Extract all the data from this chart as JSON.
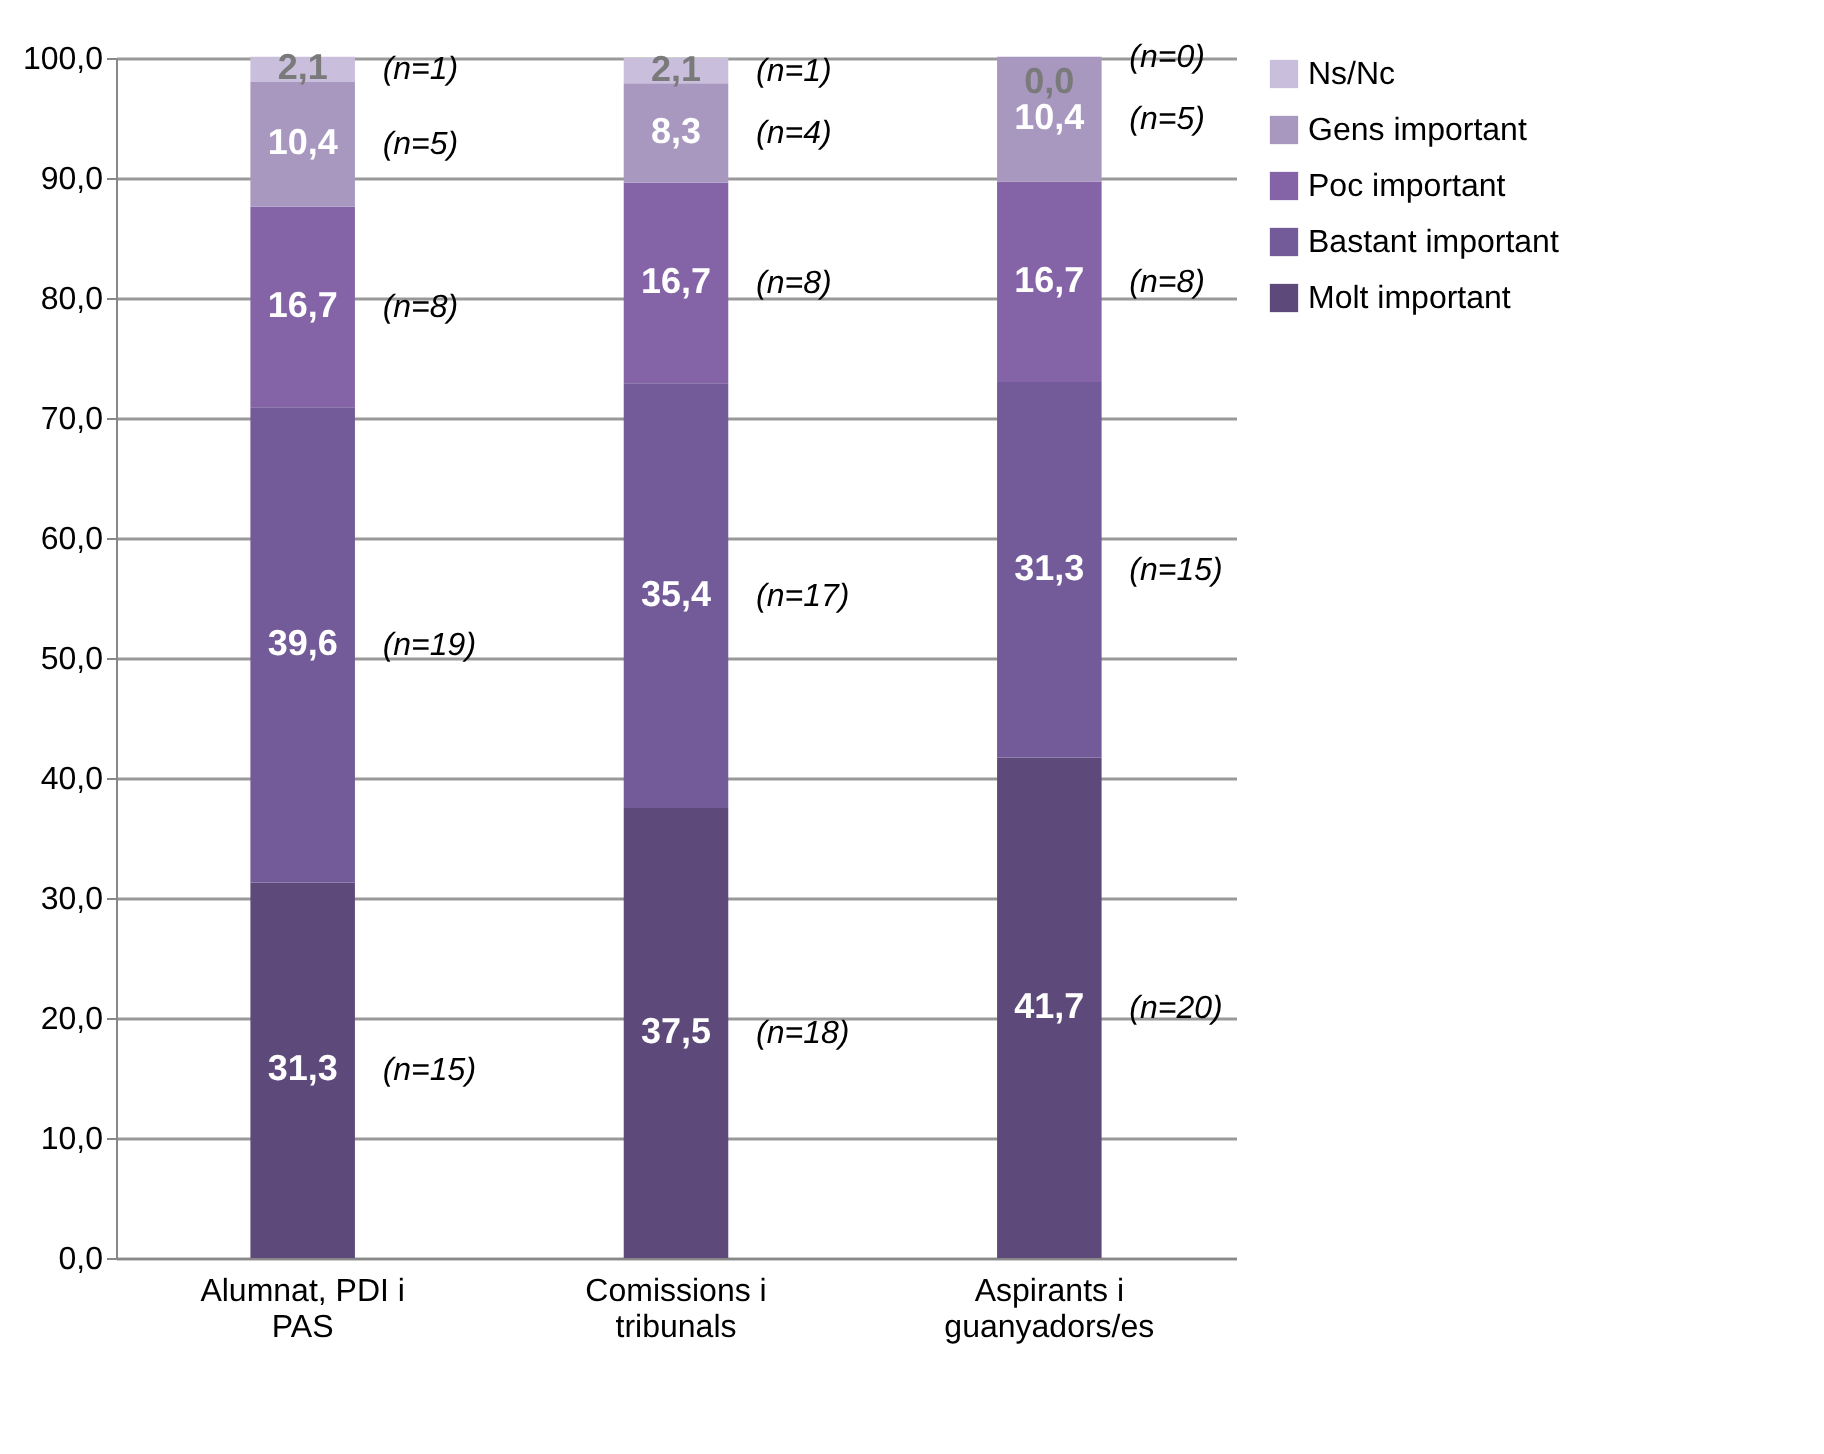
{
  "chart_data": {
    "type": "bar",
    "stacked": true,
    "categories": [
      "Alumnat, PDI i PAS",
      "Comissions i tribunals",
      "Aspirants i guanyadors/es"
    ],
    "series": [
      {
        "name": "Molt important",
        "color": "#5e4a7a",
        "values": [
          31.3,
          37.5,
          41.7
        ],
        "value_labels": [
          "31,3",
          "37,5",
          "41,7"
        ]
      },
      {
        "name": "Bastant important",
        "color": "#735a98",
        "values": [
          39.6,
          35.4,
          31.3
        ],
        "value_labels": [
          "39,6",
          "35,4",
          "31,3"
        ]
      },
      {
        "name": "Poc important",
        "color": "#8464a6",
        "values": [
          16.7,
          16.7,
          16.7
        ],
        "value_labels": [
          "16,7",
          "16,7",
          "16,7"
        ]
      },
      {
        "name": "Gens important",
        "color": "#a898c0",
        "values": [
          10.4,
          8.3,
          10.4
        ],
        "value_labels": [
          "10,4",
          "8,3",
          "10,4"
        ]
      },
      {
        "name": "Ns/Nc",
        "color": "#c9bedb",
        "values": [
          2.1,
          2.1,
          0.0
        ],
        "value_labels": [
          "2,1",
          "2,1",
          "0,0"
        ]
      }
    ],
    "ylim": [
      0,
      100
    ],
    "yticks": [
      {
        "value": 0,
        "label": "0,0"
      },
      {
        "value": 10,
        "label": "10,0"
      },
      {
        "value": 20,
        "label": "20,0"
      },
      {
        "value": 30,
        "label": "30,0"
      },
      {
        "value": 40,
        "label": "40,0"
      },
      {
        "value": 50,
        "label": "50,0"
      },
      {
        "value": 60,
        "label": "60,0"
      },
      {
        "value": 70,
        "label": "70,0"
      },
      {
        "value": 80,
        "label": "80,0"
      },
      {
        "value": 90,
        "label": "90,0"
      },
      {
        "value": 100,
        "label": "100,0"
      }
    ],
    "grid": "y",
    "legend": "right",
    "annotations": [
      "(n=15)",
      "(n=19)",
      "(n=8)",
      "(n=5)",
      "(n=1)",
      "(n=18)",
      "(n=17)",
      "(n=8)",
      "(n=4)",
      "(n=1)",
      "(n=20)",
      "(n=15)",
      "(n=8)",
      "(n=5)",
      "(n=0)"
    ]
  }
}
